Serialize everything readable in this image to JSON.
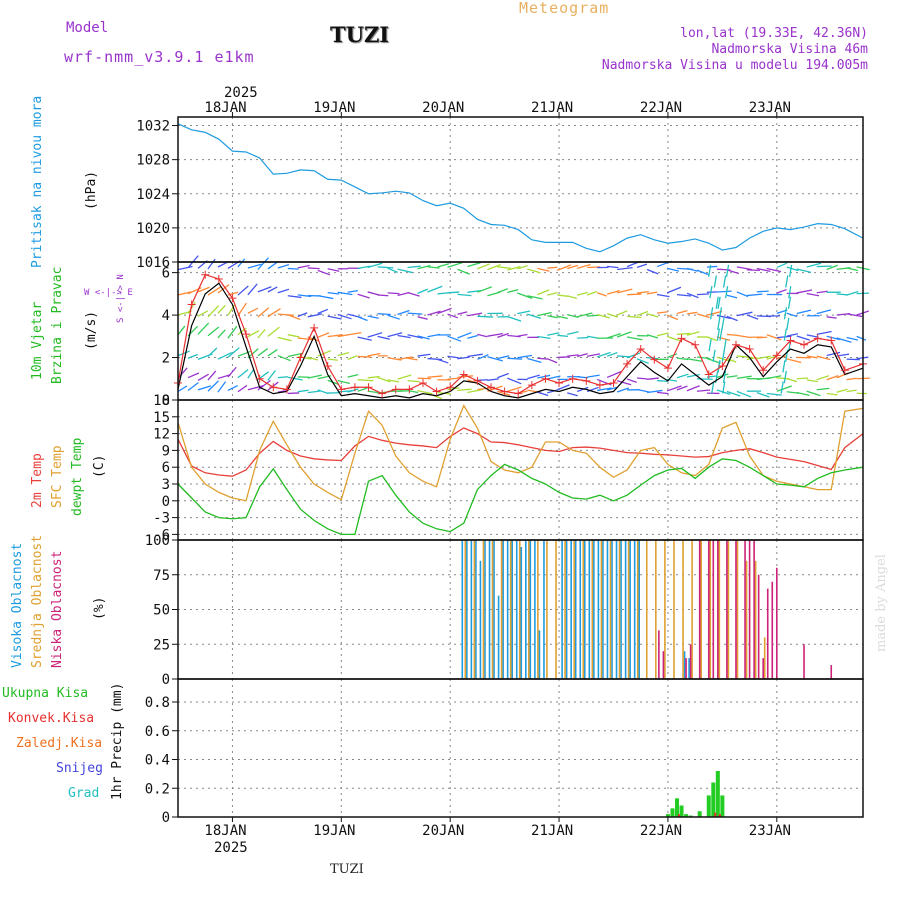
{
  "header": {
    "model_label": "Model",
    "model_name": "wrf-nmm_v3.9.1 e1km",
    "station": "TUZI",
    "product": "Meteogram",
    "coords": "lon,lat (19.33E, 42.36N)",
    "elevation": "Nadmorska Visina 46m",
    "model_elevation": "Nadmorska Visina u modelu 194.005m",
    "footer_station": "TUZI",
    "credit": "made by Angel"
  },
  "time_axis": {
    "year": "2025",
    "labels": [
      "18JAN",
      "19JAN",
      "20JAN",
      "21JAN",
      "22JAN",
      "23JAN"
    ]
  },
  "panel_labels": {
    "pressure": {
      "name": "Pritisak na nivou mora",
      "unit": "(hPa)"
    },
    "wind": {
      "name1": "10m Vjetar",
      "name2": "Brzina i Pravac",
      "unit": "(m/s)",
      "compass_ns": "S <-|-> N",
      "compass_we": "W <-|-> E"
    },
    "temp": {
      "t2m": "2m Temp",
      "sfc": "SFC Temp",
      "dew": "dewpt Temp",
      "unit": "(C)"
    },
    "cloud": {
      "high": "Visoka Oblacnost",
      "mid": "Srednja Oblacnost",
      "low": "Niska Oblacnost",
      "unit": "(%)"
    },
    "precip": {
      "total": "Ukupna Kisa",
      "conv": "Konvek.Kisa",
      "frz": "Zaledj.Kisa",
      "snow": "Snijeg",
      "hail": "Grad",
      "unit": "1hr Precip (mm)"
    }
  },
  "colors": {
    "pressure": "#1e9be0",
    "t2m": "#e8403a",
    "sfc": "#e0a030",
    "dew": "#22bb22",
    "high_cloud": "#1e9be0",
    "mid_cloud": "#e0a030",
    "low_cloud": "#cc2277",
    "precip_total": "#22cc22",
    "precip_conv": "#e83030",
    "precip_frz": "#f07020",
    "precip_snow": "#4444dd",
    "precip_hail": "#22c0c0",
    "header_purple": "#9933cc",
    "header_orange": "#e8b060",
    "wind_speed": "#e83030",
    "grid": "#888888"
  },
  "chart_data": [
    {
      "type": "line",
      "name": "pressure",
      "x_unit": "hours from 2025-01-17 12:00 UTC",
      "xlim": [
        0,
        151
      ],
      "ylim": [
        1016,
        1033
      ],
      "yticks": [
        1016,
        1020,
        1024,
        1028,
        1032
      ],
      "x": [
        0,
        3,
        6,
        9,
        12,
        15,
        18,
        21,
        24,
        27,
        30,
        33,
        36,
        39,
        42,
        45,
        48,
        51,
        54,
        57,
        60,
        63,
        66,
        69,
        72,
        75,
        78,
        81,
        84,
        87,
        90,
        93,
        96,
        99,
        102,
        105,
        108,
        111,
        114,
        117,
        120,
        123,
        126,
        129,
        132,
        135,
        138,
        141,
        144,
        147,
        151
      ],
      "values": [
        1032.2,
        1031.5,
        1031.2,
        1030.4,
        1029.0,
        1028.9,
        1028.2,
        1026.3,
        1026.4,
        1026.8,
        1026.7,
        1025.7,
        1025.6,
        1024.8,
        1024.0,
        1024.1,
        1024.3,
        1024.1,
        1023.2,
        1022.6,
        1022.9,
        1022.3,
        1021.0,
        1020.4,
        1020.3,
        1019.8,
        1018.6,
        1018.3,
        1018.3,
        1018.3,
        1017.6,
        1017.2,
        1017.9,
        1018.8,
        1019.2,
        1018.6,
        1018.2,
        1018.4,
        1018.7,
        1018.2,
        1017.4,
        1017.7,
        1018.8,
        1019.6,
        1020.0,
        1019.8,
        1020.1,
        1020.5,
        1020.4,
        1019.9,
        1018.8
      ]
    },
    {
      "type": "line",
      "name": "wind",
      "x_unit": "hours from 2025-01-17 12:00 UTC",
      "xlim": [
        0,
        151
      ],
      "ylim": [
        0,
        6.5
      ],
      "yticks": [
        0,
        2,
        4,
        6
      ],
      "series": [
        {
          "color": "#000000",
          "x": [
            0,
            3,
            6,
            9,
            12,
            15,
            18,
            21,
            24,
            27,
            30,
            33,
            36,
            39,
            42,
            45,
            48,
            51,
            54,
            57,
            60,
            63,
            66,
            69,
            72,
            75,
            78,
            81,
            84,
            87,
            90,
            93,
            96,
            99,
            102,
            105,
            108,
            111,
            114,
            117,
            120,
            123,
            126,
            129,
            132,
            135,
            138,
            141,
            144,
            147,
            151
          ],
          "values": [
            0.5,
            3.5,
            5.0,
            5.5,
            4.5,
            2.5,
            0.6,
            0.3,
            0.4,
            1.6,
            3.0,
            1.2,
            0.2,
            0.3,
            0.2,
            0.1,
            0.2,
            0.1,
            0.3,
            0.2,
            0.4,
            0.9,
            0.8,
            0.4,
            0.2,
            0.1,
            0.3,
            0.5,
            0.4,
            0.6,
            0.5,
            0.3,
            0.4,
            1.1,
            1.8,
            1.3,
            0.9,
            1.7,
            1.2,
            0.7,
            1.1,
            2.6,
            2.0,
            1.1,
            1.8,
            2.4,
            2.2,
            2.6,
            2.5,
            1.2,
            1.5
          ]
        },
        {
          "color": "#e83030",
          "x": [
            0,
            3,
            6,
            9,
            12,
            15,
            18,
            21,
            24,
            27,
            30,
            33,
            36,
            39,
            42,
            45,
            48,
            51,
            54,
            57,
            60,
            63,
            66,
            69,
            72,
            75,
            78,
            81,
            84,
            87,
            90,
            93,
            96,
            99,
            102,
            105,
            108,
            111,
            114,
            117,
            120,
            123,
            126,
            129,
            132,
            135,
            138,
            141,
            144,
            147,
            151
          ],
          "values": [
            0.8,
            4.5,
            5.9,
            5.7,
            4.8,
            3.1,
            1.0,
            0.6,
            0.5,
            2.0,
            3.4,
            1.6,
            0.5,
            0.6,
            0.6,
            0.3,
            0.5,
            0.5,
            0.8,
            0.4,
            0.6,
            1.2,
            0.9,
            0.6,
            0.4,
            0.3,
            0.7,
            1.0,
            0.8,
            1.0,
            0.9,
            0.7,
            0.8,
            1.7,
            2.4,
            1.9,
            1.5,
            2.9,
            2.6,
            1.2,
            1.6,
            2.6,
            2.4,
            1.4,
            2.1,
            2.8,
            2.6,
            2.9,
            2.8,
            1.4,
            1.7
          ]
        }
      ]
    },
    {
      "type": "line",
      "name": "temperature",
      "x_unit": "hours from 2025-01-17 12:00 UTC",
      "xlim": [
        0,
        151
      ],
      "ylim": [
        -7,
        18
      ],
      "yticks": [
        -6,
        -3,
        0,
        3,
        6,
        9,
        12,
        15,
        18
      ],
      "series": [
        {
          "name": "2m Temp",
          "color": "#e8403a",
          "x": [
            0,
            3,
            6,
            9,
            12,
            15,
            18,
            21,
            24,
            27,
            30,
            33,
            36,
            39,
            42,
            45,
            48,
            51,
            54,
            57,
            60,
            63,
            66,
            69,
            72,
            75,
            78,
            81,
            84,
            87,
            90,
            93,
            96,
            99,
            102,
            105,
            108,
            111,
            114,
            117,
            120,
            123,
            126,
            129,
            132,
            135,
            138,
            141,
            144,
            147,
            151
          ],
          "values": [
            11.0,
            6.2,
            5.0,
            4.6,
            4.4,
            5.5,
            8.5,
            10.6,
            9.0,
            8.0,
            7.5,
            7.3,
            7.2,
            9.8,
            11.5,
            10.8,
            10.3,
            10.0,
            9.8,
            9.5,
            11.5,
            13.0,
            12.0,
            10.5,
            10.4,
            10.0,
            9.5,
            9.0,
            8.8,
            9.5,
            9.6,
            9.4,
            9.0,
            8.6,
            8.5,
            8.3,
            8.2,
            8.0,
            7.8,
            7.9,
            8.6,
            9.0,
            9.3,
            8.6,
            7.8,
            7.4,
            7.0,
            6.3,
            5.6,
            9.5,
            12.0
          ]
        },
        {
          "name": "SFC Temp",
          "color": "#e0a030",
          "x": [
            0,
            3,
            6,
            9,
            12,
            15,
            18,
            21,
            24,
            27,
            30,
            33,
            36,
            39,
            42,
            45,
            48,
            51,
            54,
            57,
            60,
            63,
            66,
            69,
            72,
            75,
            78,
            81,
            84,
            87,
            90,
            93,
            96,
            99,
            102,
            105,
            108,
            111,
            114,
            117,
            120,
            123,
            126,
            129,
            132,
            135,
            138,
            141,
            144,
            147,
            151
          ],
          "values": [
            14.0,
            6.0,
            3.0,
            1.5,
            0.5,
            0.0,
            9.0,
            14.2,
            10.0,
            6.0,
            3.0,
            1.5,
            0.2,
            8.5,
            16.0,
            13.5,
            8.0,
            5.0,
            3.5,
            2.5,
            11.0,
            17.0,
            13.0,
            7.0,
            5.5,
            5.0,
            6.0,
            10.5,
            10.5,
            9.0,
            8.5,
            6.0,
            4.2,
            5.5,
            9.0,
            9.5,
            6.5,
            5.0,
            4.5,
            6.5,
            13.0,
            14.0,
            8.0,
            4.5,
            3.5,
            3.0,
            2.5,
            2.0,
            2.0,
            16.0,
            16.5
          ]
        },
        {
          "name": "dewpt Temp",
          "color": "#22bb22",
          "x": [
            0,
            3,
            6,
            9,
            12,
            15,
            18,
            21,
            24,
            27,
            30,
            33,
            36,
            39,
            42,
            45,
            48,
            51,
            54,
            57,
            60,
            63,
            66,
            69,
            72,
            75,
            78,
            81,
            84,
            87,
            90,
            93,
            96,
            99,
            102,
            105,
            108,
            111,
            114,
            117,
            120,
            123,
            126,
            129,
            132,
            135,
            138,
            141,
            144,
            147,
            151
          ],
          "values": [
            3.0,
            0.5,
            -2.0,
            -3.0,
            -3.2,
            -3.0,
            2.5,
            5.7,
            2.0,
            -1.5,
            -3.5,
            -5.0,
            -6.0,
            -6.0,
            3.5,
            4.5,
            1.0,
            -2.0,
            -4.0,
            -5.0,
            -5.5,
            -4.0,
            2.0,
            4.5,
            6.5,
            5.5,
            4.0,
            3.0,
            1.5,
            0.5,
            0.3,
            1.0,
            0.0,
            1.0,
            2.8,
            4.5,
            5.5,
            5.8,
            4.0,
            6.0,
            7.5,
            7.2,
            6.0,
            4.5,
            3.0,
            2.8,
            2.5,
            4.0,
            5.0,
            5.5,
            6.0
          ]
        }
      ]
    },
    {
      "type": "bar",
      "name": "cloud_cover",
      "x_unit": "hours from 2025-01-17 12:00 UTC",
      "xlim": [
        0,
        151
      ],
      "ylim": [
        0,
        100
      ],
      "yticks": [
        0,
        25,
        50,
        75,
        100
      ],
      "high_start": 63,
      "high_end": 118,
      "mid_start": 63,
      "mid_end": 130,
      "low_start": 106,
      "low_end": 150,
      "series": [
        {
          "name": "Visoka Oblacnost",
          "color": "#1e9be0",
          "x": [
            63,
            64,
            65,
            66,
            67,
            68,
            69,
            70,
            71,
            72,
            73,
            74,
            75,
            76,
            77,
            78,
            79,
            80,
            81,
            82,
            83,
            84,
            85,
            86,
            87,
            88,
            89,
            90,
            91,
            92,
            93,
            94,
            95,
            96,
            97,
            98,
            99,
            100,
            101,
            102,
            103,
            104,
            105,
            106,
            107,
            108,
            109,
            110,
            111,
            112,
            113,
            114,
            115,
            116,
            117,
            118
          ],
          "values": [
            100,
            100,
            100,
            100,
            85,
            100,
            100,
            100,
            60,
            100,
            100,
            100,
            100,
            95,
            100,
            100,
            100,
            35,
            100,
            0,
            0,
            0,
            100,
            100,
            100,
            100,
            100,
            100,
            100,
            100,
            100,
            100,
            100,
            100,
            100,
            100,
            100,
            100,
            100,
            100,
            0,
            0,
            0,
            0,
            0,
            0,
            0,
            0,
            0,
            20,
            15,
            0,
            0,
            0,
            0,
            0
          ]
        },
        {
          "name": "Srednja Oblacnost",
          "color": "#e0a030",
          "x": [
            63,
            65,
            67,
            69,
            71,
            73,
            75,
            77,
            79,
            81,
            83,
            85,
            87,
            89,
            91,
            93,
            95,
            97,
            99,
            101,
            103,
            105,
            107,
            109,
            111,
            113,
            115,
            117,
            119,
            121,
            123,
            125,
            127,
            129
          ],
          "values": [
            100,
            100,
            100,
            100,
            100,
            100,
            100,
            100,
            100,
            100,
            100,
            100,
            100,
            100,
            100,
            100,
            100,
            100,
            100,
            100,
            100,
            100,
            100,
            100,
            100,
            100,
            100,
            100,
            100,
            100,
            100,
            85,
            85,
            30
          ]
        },
        {
          "name": "Niska Oblacnost",
          "color": "#cc2277",
          "x": [
            106,
            107,
            108,
            111,
            112,
            113,
            115,
            117,
            118,
            119,
            121,
            123,
            125,
            126,
            127,
            128,
            129,
            130,
            131,
            132,
            134,
            138,
            144
          ],
          "values": [
            35,
            20,
            0,
            0,
            15,
            25,
            100,
            100,
            100,
            100,
            100,
            100,
            100,
            100,
            100,
            75,
            15,
            65,
            70,
            80,
            0,
            25,
            10
          ]
        }
      ]
    },
    {
      "type": "bar",
      "name": "precipitation",
      "x_unit": "hours from 2025-01-17 12:00 UTC",
      "xlim": [
        0,
        151
      ],
      "ylim": [
        0,
        0.96
      ],
      "yticks": [
        0,
        0.2,
        0.4,
        0.6,
        0.8
      ],
      "series": [
        {
          "name": "Ukupna Kisa",
          "color": "#22cc22",
          "x": [
            108,
            109,
            110,
            111,
            112,
            113,
            115,
            117,
            118,
            119,
            120
          ],
          "values": [
            0.02,
            0.06,
            0.13,
            0.08,
            0.02,
            0.01,
            0.04,
            0.15,
            0.24,
            0.32,
            0.15
          ]
        },
        {
          "name": "Konvek.Kisa",
          "color": "#e83030",
          "x": [
            110,
            118,
            119
          ],
          "values": [
            0.02,
            0.03,
            0.02
          ]
        }
      ]
    }
  ]
}
